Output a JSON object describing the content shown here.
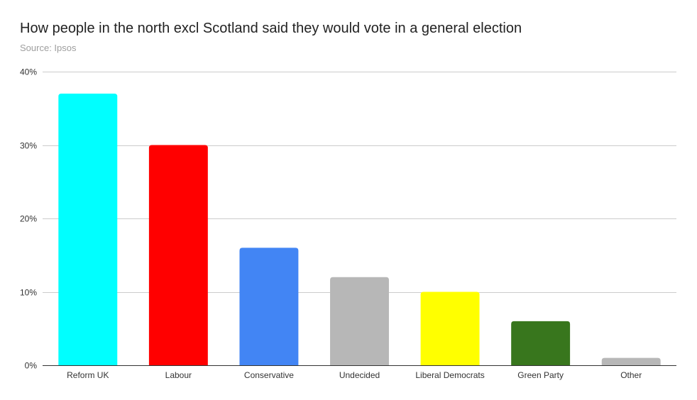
{
  "chart_data": {
    "type": "bar",
    "title": "How people in the north excl Scotland said they would vote in a general election",
    "subtitle": "Source: Ipsos",
    "xlabel": "",
    "ylabel": "",
    "categories": [
      "Reform UK",
      "Labour",
      "Conservative",
      "Undecided",
      "Liberal Democrats",
      "Green Party",
      "Other"
    ],
    "values": [
      37,
      30,
      16,
      12,
      10,
      6,
      1
    ],
    "colors": [
      "#00ffff",
      "#ff0000",
      "#4285f4",
      "#b7b7b7",
      "#ffff00",
      "#38761d",
      "#b7b7b7"
    ],
    "ylim": [
      0,
      40
    ],
    "yticks": [
      0,
      10,
      20,
      30,
      40
    ],
    "ytick_labels": [
      "0%",
      "10%",
      "20%",
      "30%",
      "40%"
    ],
    "grid": true,
    "legend": "none",
    "unit": "%"
  }
}
